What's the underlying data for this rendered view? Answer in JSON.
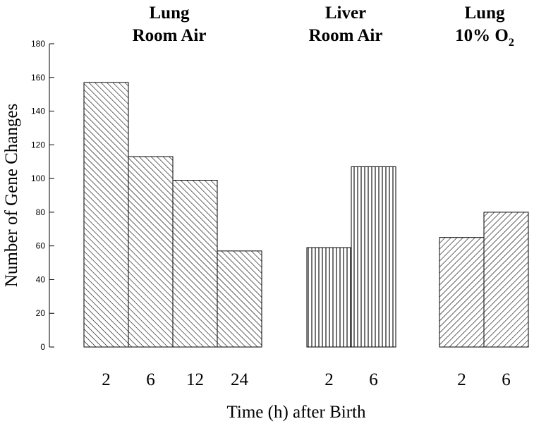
{
  "chart_data": {
    "type": "bar",
    "title": "",
    "xlabel": "Time (h) after Birth",
    "ylabel": "Number of Gene Changes",
    "ylim": [
      0,
      180
    ],
    "yticks": [
      0,
      20,
      40,
      60,
      80,
      100,
      120,
      140,
      160,
      180
    ],
    "grid": false,
    "groups": [
      {
        "title_line1": "Lung",
        "title_line2": "Room Air",
        "pattern": "diagonal-back",
        "categories": [
          "2",
          "6",
          "12",
          "24"
        ],
        "values": [
          157,
          113,
          99,
          57
        ]
      },
      {
        "title_line1": "Liver",
        "title_line2": "Room Air",
        "pattern": "vertical",
        "categories": [
          "2",
          "6"
        ],
        "values": [
          59,
          107
        ]
      },
      {
        "title_line1": "Lung",
        "title_line2": "10% O",
        "title_line2_sub": "2",
        "pattern": "diagonal-forward",
        "categories": [
          "2",
          "6"
        ],
        "values": [
          65,
          80
        ]
      }
    ]
  }
}
